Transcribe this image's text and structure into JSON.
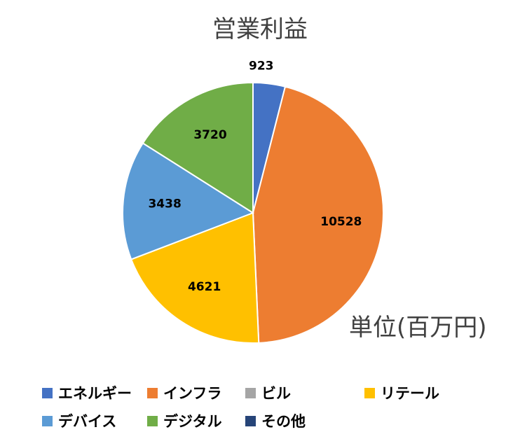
{
  "chart_data": {
    "type": "pie",
    "title": "営業利益",
    "unit_note": "単位(百万円)",
    "slices": [
      {
        "name": "エネルギー",
        "value": 923,
        "color": "#4472C4",
        "label": "923"
      },
      {
        "name": "インフラ",
        "value": 10528,
        "color": "#ED7D31",
        "label": "10528"
      },
      {
        "name": "リテール",
        "value": 4621,
        "color": "#FFC000",
        "label": "4621"
      },
      {
        "name": "デバイス",
        "value": 3438,
        "color": "#5B9BD5",
        "label": "3438"
      },
      {
        "name": "デジタル",
        "value": 3720,
        "color": "#70AD47",
        "label": "3720"
      }
    ],
    "legend": {
      "placement": "bottom",
      "items": [
        {
          "name": "エネルギー",
          "color": "#4472C4"
        },
        {
          "name": "インフラ",
          "color": "#ED7D31"
        },
        {
          "name": "ビル",
          "color": "#A5A5A5"
        },
        {
          "name": "リテール",
          "color": "#FFC000"
        },
        {
          "name": "デバイス",
          "color": "#5B9BD5"
        },
        {
          "name": "デジタル",
          "color": "#70AD47"
        },
        {
          "name": "その他",
          "color": "#264478"
        }
      ]
    }
  }
}
